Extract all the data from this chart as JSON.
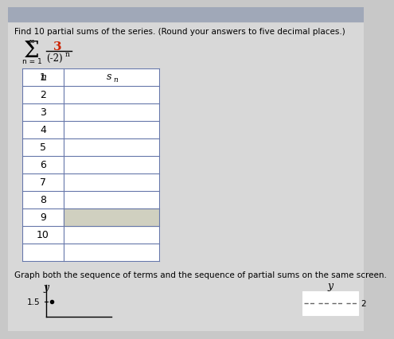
{
  "title": "Find 10 partial sums of the series. (Round your answers to five decimal places.)",
  "infinity": "∞",
  "sigma": "Σ",
  "numerator": "3",
  "denominator": "(-2)",
  "exponent": "n",
  "index_text": "n = 1",
  "col_n": "n",
  "col_sn_s": "s",
  "col_sn_n": "n",
  "rows": [
    1,
    2,
    3,
    4,
    5,
    6,
    7,
    8,
    9,
    10
  ],
  "footer_text": "Graph both the sequence of terms and the sequence of partial sums on the same screen.",
  "y_label": "y",
  "y_value": "1.5",
  "y2_label": "y",
  "y2_value": "2",
  "text_color": "#000000",
  "red_color": "#cc2200",
  "page_bg": "#c8c8c8",
  "content_bg": "#d8d8d8",
  "table_line_color": "#6677aa",
  "table_cell_bg": "#ffffff",
  "table_input_bg": "#e8e8e8",
  "row9_bg": "#d0d0c0",
  "top_bar_color": "#a0a8b8"
}
